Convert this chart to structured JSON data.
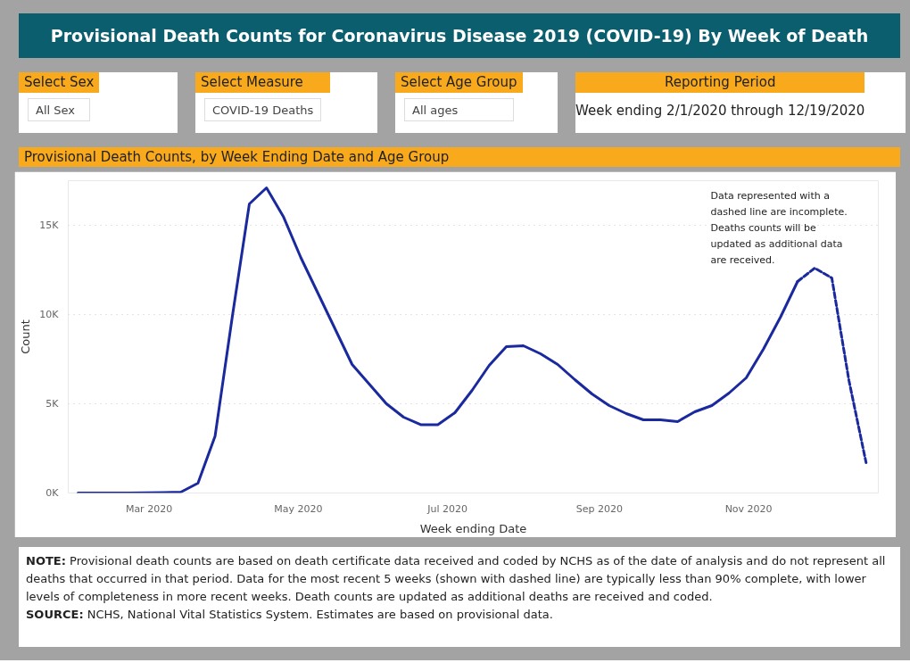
{
  "chart_data": {
    "type": "line",
    "title": "Provisional Death Counts for Coronavirus Disease 2019 (COVID-19) By Week of Death",
    "subtitle": "Provisional Death Counts, by Week Ending Date and Age Group",
    "xlabel": "Week ending Date",
    "ylabel": "Count",
    "x": [
      "2020-02-01",
      "2020-02-08",
      "2020-02-15",
      "2020-02-22",
      "2020-02-29",
      "2020-03-07",
      "2020-03-14",
      "2020-03-21",
      "2020-03-28",
      "2020-04-04",
      "2020-04-11",
      "2020-04-18",
      "2020-04-25",
      "2020-05-02",
      "2020-05-09",
      "2020-05-16",
      "2020-05-23",
      "2020-05-30",
      "2020-06-06",
      "2020-06-13",
      "2020-06-20",
      "2020-06-27",
      "2020-07-04",
      "2020-07-11",
      "2020-07-18",
      "2020-07-25",
      "2020-08-01",
      "2020-08-08",
      "2020-08-15",
      "2020-08-22",
      "2020-08-29",
      "2020-09-05",
      "2020-09-12",
      "2020-09-19",
      "2020-09-26",
      "2020-10-03",
      "2020-10-10",
      "2020-10-17",
      "2020-10-24",
      "2020-10-31",
      "2020-11-07",
      "2020-11-14",
      "2020-11-21",
      "2020-11-28",
      "2020-12-05",
      "2020-12-12",
      "2020-12-19"
    ],
    "series": [
      {
        "color": "#1a2a9e",
        "line_style": "solid",
        "values": [
          0,
          0,
          0,
          0,
          10,
          20,
          50,
          550,
          3190,
          9850,
          16200,
          17100,
          15460,
          13200,
          11200,
          9200,
          7200,
          6100,
          5000,
          4250,
          3830,
          3830,
          4500,
          5750,
          7150,
          8200,
          8250,
          7800,
          7200,
          6350,
          5550,
          4900,
          4450,
          4100,
          4100,
          4000,
          4550,
          4900,
          5600,
          6450,
          8050,
          9850,
          11850,
          null,
          null,
          null,
          null
        ]
      },
      {
        "color": "#1a2a9e",
        "line_style": "dashed",
        "values": [
          null,
          null,
          null,
          null,
          null,
          null,
          null,
          null,
          null,
          null,
          null,
          null,
          null,
          null,
          null,
          null,
          null,
          null,
          null,
          null,
          null,
          null,
          null,
          null,
          null,
          null,
          null,
          null,
          null,
          null,
          null,
          null,
          null,
          null,
          null,
          null,
          null,
          null,
          null,
          null,
          null,
          null,
          11850,
          12600,
          12050,
          6300,
          1700
        ]
      }
    ],
    "xlim": [
      "2020-01-28",
      "2020-12-24"
    ],
    "xticks": [
      {
        "value": "2020-03-01",
        "label": "Mar 2020"
      },
      {
        "value": "2020-05-01",
        "label": "May 2020"
      },
      {
        "value": "2020-07-01",
        "label": "Jul 2020"
      },
      {
        "value": "2020-09-01",
        "label": "Sep 2020"
      },
      {
        "value": "2020-11-01",
        "label": "Nov 2020"
      }
    ],
    "ylim": [
      0,
      17500
    ],
    "yticks": [
      {
        "value": 0,
        "label": "0K"
      },
      {
        "value": 5000,
        "label": "5K"
      },
      {
        "value": 10000,
        "label": "10K"
      },
      {
        "value": 15000,
        "label": "15K"
      }
    ],
    "grid": "y",
    "marker": "none",
    "annotations": [
      "Select Sex",
      "All Sex",
      "Select Measure",
      "COVID-19 Deaths",
      "Select Age Group",
      "All ages",
      "Reporting Period",
      "Week ending 2/1/2020 through 12/19/2020",
      "Data represented with a dashed line are incomplete. Deaths counts will be updated as additional data are received.",
      "NOTE: Provisional death counts are based on death certificate data received and coded by NCHS as of the date of analysis and do not represent all deaths that occurred in that period. Data for the most recent 5 weeks (shown with dashed line) are typically less than 90% complete, with lower levels of completeness in more recent weeks.  Death counts are updated as additional deaths are received and coded.",
      "SOURCE: NCHS, National Vital Statistics System. Estimates are based on provisional data."
    ]
  }
}
